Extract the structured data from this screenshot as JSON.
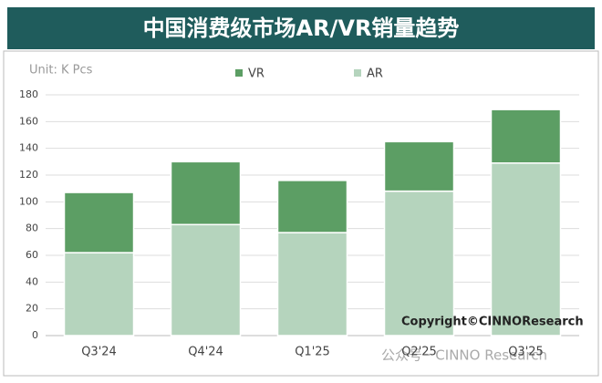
{
  "chart_data": {
    "type": "stacked_bar",
    "title": "中国消费级市场AR/VR销量趋势",
    "unit": "Unit: K Pcs",
    "categories": [
      "Q3'24",
      "Q4'24",
      "Q1'25",
      "Q2'25",
      "Q3'25"
    ],
    "series": [
      {
        "name": "AR",
        "color": "#b5d4bd",
        "values": [
          62,
          83,
          77,
          108,
          129
        ]
      },
      {
        "name": "VR",
        "color": "#5c9e64",
        "values": [
          45,
          47,
          39,
          37,
          40
        ]
      }
    ],
    "ylim": [
      0,
      180
    ],
    "yticks": [
      0,
      20,
      40,
      60,
      80,
      100,
      120,
      140,
      160,
      180
    ],
    "grid": true,
    "copyright": "Copyright©CINNOResearch",
    "watermark": "公众号 · CINNO Research"
  }
}
